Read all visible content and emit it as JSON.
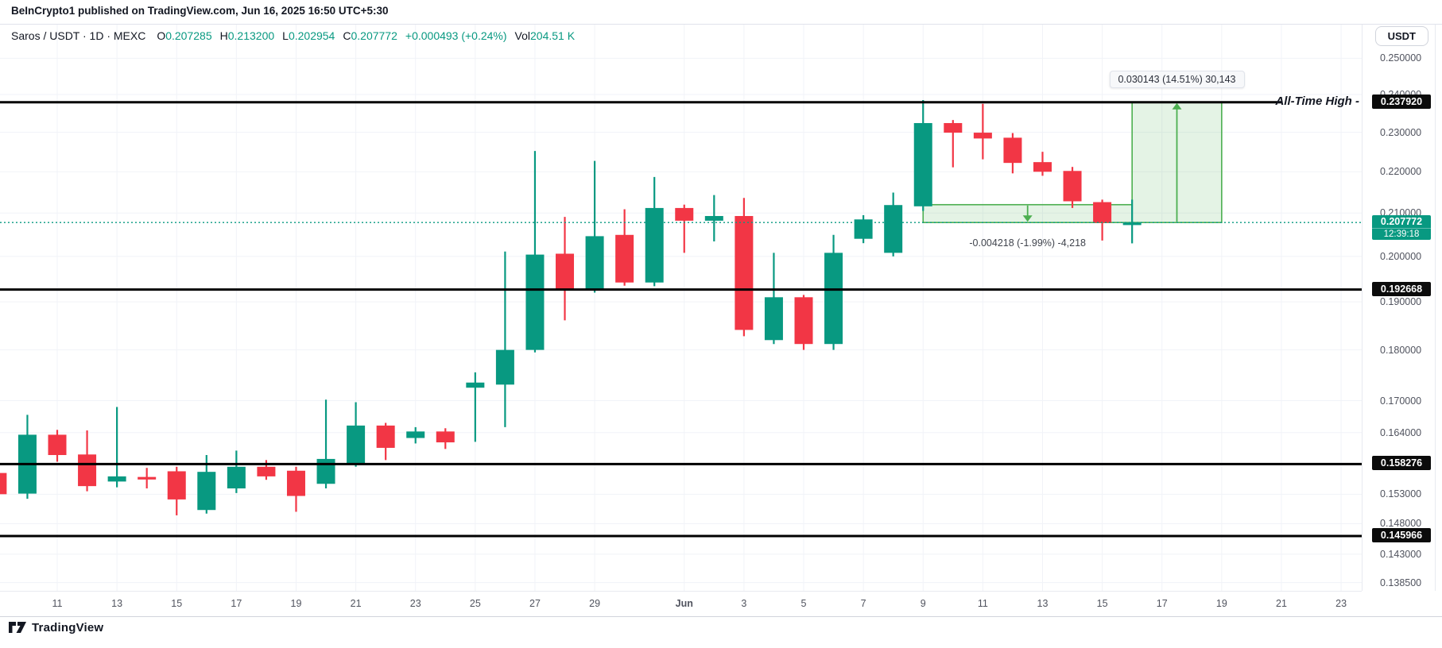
{
  "header": {
    "publish_line": "BeInCrypto1 published on TradingView.com, Jun 16, 2025 16:50 UTC+5:30"
  },
  "toolbar": {
    "symbol": "Saros / USDT · 1D · MEXC",
    "o_label": "O",
    "o_value": "0.207285",
    "h_label": "H",
    "h_value": "0.213200",
    "l_label": "L",
    "l_value": "0.202954",
    "c_label": "C",
    "c_value": "0.207772",
    "change": "+0.000493 (+0.24%)",
    "vol_label": "Vol",
    "vol_value": "204.51 K",
    "currency_button": "USDT"
  },
  "annotations": {
    "ath_text": "All-Time High -",
    "ath_badge": "0.237920",
    "up_measure_label": "0.030143 (14.51%) 30,143",
    "down_measure_label": "-0.004218 (-1.99%) -4,218",
    "current_price_label": "0.207772",
    "countdown": "12:39:18",
    "level_badges": [
      "0.237920",
      "0.192668",
      "0.158276",
      "0.145966"
    ]
  },
  "footer": {
    "brand": "TradingView"
  },
  "chart_data": {
    "type": "candlestick",
    "title": "Saros / USDT 1D (MEXC)",
    "x_unit": "day",
    "first_candle_date": "May 9",
    "last_candle_date": "Jun 16",
    "price_scale_type": "log",
    "colors": {
      "up": "#089981",
      "down": "#F23645",
      "measure": "#4CAF50",
      "level": "#000000",
      "grid": "#F1F3F8"
    },
    "price_axis_ticks": [
      {
        "label": "0.250000",
        "p": 0.25
      },
      {
        "label": "0.240000",
        "p": 0.24
      },
      {
        "label": "0.230000",
        "p": 0.23
      },
      {
        "label": "0.220000",
        "p": 0.22
      },
      {
        "label": "0.210000",
        "p": 0.21
      },
      {
        "label": "0.200000",
        "p": 0.2
      },
      {
        "label": "0.190000",
        "p": 0.19
      },
      {
        "label": "0.180000",
        "p": 0.18
      },
      {
        "label": "0.170000",
        "p": 0.17
      },
      {
        "label": "0.164000",
        "p": 0.164
      },
      {
        "label": "0.153000",
        "p": 0.153
      },
      {
        "label": "0.148000",
        "p": 0.148
      },
      {
        "label": "0.143000",
        "p": 0.143
      },
      {
        "label": "0.138500",
        "p": 0.1385
      }
    ],
    "time_axis_ticks": [
      {
        "label": "11",
        "d": 2
      },
      {
        "label": "13",
        "d": 4
      },
      {
        "label": "15",
        "d": 6
      },
      {
        "label": "17",
        "d": 8
      },
      {
        "label": "19",
        "d": 10
      },
      {
        "label": "21",
        "d": 12
      },
      {
        "label": "23",
        "d": 14
      },
      {
        "label": "25",
        "d": 16
      },
      {
        "label": "27",
        "d": 18
      },
      {
        "label": "29",
        "d": 20
      },
      {
        "label": "Jun",
        "d": 23,
        "month": true
      },
      {
        "label": "3",
        "d": 25
      },
      {
        "label": "5",
        "d": 27
      },
      {
        "label": "7",
        "d": 29
      },
      {
        "label": "9",
        "d": 31
      },
      {
        "label": "11",
        "d": 33
      },
      {
        "label": "13",
        "d": 35
      },
      {
        "label": "15",
        "d": 37
      },
      {
        "label": "17",
        "d": 39
      },
      {
        "label": "19",
        "d": 41
      },
      {
        "label": "21",
        "d": 43
      },
      {
        "label": "23",
        "d": 45
      }
    ],
    "levels": [
      {
        "p": 0.23792,
        "label": "0.237920",
        "name": "all-time-high"
      },
      {
        "p": 0.192668,
        "label": "0.192668",
        "name": "support-1"
      },
      {
        "p": 0.158276,
        "label": "0.158276",
        "name": "support-2"
      },
      {
        "p": 0.145966,
        "label": "0.145966",
        "name": "support-3"
      }
    ],
    "current": {
      "price": 0.207772,
      "countdown": "12:39:18"
    },
    "measures": {
      "up": {
        "d1": 38,
        "d2": 41,
        "p1": 0.207772,
        "p2": 0.237915,
        "label": "0.030143 (14.51%) 30,143"
      },
      "down": {
        "d1": 31,
        "d2": 38,
        "p1": 0.21199,
        "p2": 0.207772,
        "label": "-0.004218 (-1.99%) -4,218"
      }
    },
    "candles": [
      {
        "date": "May 9",
        "o": 0.1567,
        "h": 0.1585,
        "l": 0.152,
        "c": 0.153
      },
      {
        "date": "May 10",
        "o": 0.1531,
        "h": 0.1673,
        "l": 0.1522,
        "c": 0.1636
      },
      {
        "date": "May 11",
        "o": 0.1636,
        "h": 0.1645,
        "l": 0.1587,
        "c": 0.1599
      },
      {
        "date": "May 12",
        "o": 0.16,
        "h": 0.1644,
        "l": 0.1535,
        "c": 0.1544
      },
      {
        "date": "May 13",
        "o": 0.1552,
        "h": 0.1688,
        "l": 0.1542,
        "c": 0.1561
      },
      {
        "date": "May 14",
        "o": 0.156,
        "h": 0.1576,
        "l": 0.154,
        "c": 0.1556
      },
      {
        "date": "May 15",
        "o": 0.157,
        "h": 0.1578,
        "l": 0.1494,
        "c": 0.1521
      },
      {
        "date": "May 16",
        "o": 0.1503,
        "h": 0.1599,
        "l": 0.1497,
        "c": 0.1569
      },
      {
        "date": "May 17",
        "o": 0.154,
        "h": 0.1607,
        "l": 0.1532,
        "c": 0.1578
      },
      {
        "date": "May 18",
        "o": 0.1578,
        "h": 0.159,
        "l": 0.1555,
        "c": 0.1561
      },
      {
        "date": "May 19",
        "o": 0.1571,
        "h": 0.1578,
        "l": 0.15,
        "c": 0.1527
      },
      {
        "date": "May 20",
        "o": 0.1548,
        "h": 0.1702,
        "l": 0.154,
        "c": 0.1592
      },
      {
        "date": "May 21",
        "o": 0.1582,
        "h": 0.1697,
        "l": 0.1578,
        "c": 0.1653
      },
      {
        "date": "May 22",
        "o": 0.1653,
        "h": 0.1658,
        "l": 0.159,
        "c": 0.1612
      },
      {
        "date": "May 23",
        "o": 0.163,
        "h": 0.165,
        "l": 0.162,
        "c": 0.1642
      },
      {
        "date": "May 24",
        "o": 0.1642,
        "h": 0.1648,
        "l": 0.161,
        "c": 0.1622
      },
      {
        "date": "May 25",
        "o": 0.1725,
        "h": 0.1755,
        "l": 0.1623,
        "c": 0.1735
      },
      {
        "date": "May 26",
        "o": 0.1731,
        "h": 0.2011,
        "l": 0.165,
        "c": 0.18
      },
      {
        "date": "May 27",
        "o": 0.18,
        "h": 0.2252,
        "l": 0.1795,
        "c": 0.2004
      },
      {
        "date": "May 28",
        "o": 0.2006,
        "h": 0.2091,
        "l": 0.1861,
        "c": 0.1928
      },
      {
        "date": "May 29",
        "o": 0.1927,
        "h": 0.2227,
        "l": 0.192,
        "c": 0.2046
      },
      {
        "date": "May 30",
        "o": 0.2049,
        "h": 0.2109,
        "l": 0.1935,
        "c": 0.1942
      },
      {
        "date": "May 31",
        "o": 0.1942,
        "h": 0.2187,
        "l": 0.1934,
        "c": 0.2112
      },
      {
        "date": "Jun 1",
        "o": 0.2112,
        "h": 0.212,
        "l": 0.2008,
        "c": 0.2082
      },
      {
        "date": "Jun 2",
        "o": 0.2082,
        "h": 0.2143,
        "l": 0.2034,
        "c": 0.2093
      },
      {
        "date": "Jun 3",
        "o": 0.2093,
        "h": 0.2136,
        "l": 0.1828,
        "c": 0.1841
      },
      {
        "date": "Jun 4",
        "o": 0.182,
        "h": 0.2008,
        "l": 0.1812,
        "c": 0.191
      },
      {
        "date": "Jun 5",
        "o": 0.191,
        "h": 0.1915,
        "l": 0.18,
        "c": 0.1812
      },
      {
        "date": "Jun 6",
        "o": 0.1812,
        "h": 0.2049,
        "l": 0.18,
        "c": 0.2008
      },
      {
        "date": "Jun 7",
        "o": 0.204,
        "h": 0.2095,
        "l": 0.203,
        "c": 0.2085
      },
      {
        "date": "Jun 8",
        "o": 0.2008,
        "h": 0.2149,
        "l": 0.2,
        "c": 0.2119
      },
      {
        "date": "Jun 9",
        "o": 0.2116,
        "h": 0.2385,
        "l": 0.2105,
        "c": 0.2324
      },
      {
        "date": "Jun 10",
        "o": 0.2324,
        "h": 0.2332,
        "l": 0.2211,
        "c": 0.2299
      },
      {
        "date": "Jun 11",
        "o": 0.2299,
        "h": 0.2375,
        "l": 0.2231,
        "c": 0.2284
      },
      {
        "date": "Jun 12",
        "o": 0.2286,
        "h": 0.2298,
        "l": 0.2196,
        "c": 0.2222
      },
      {
        "date": "Jun 13",
        "o": 0.2224,
        "h": 0.225,
        "l": 0.219,
        "c": 0.22
      },
      {
        "date": "Jun 14",
        "o": 0.2202,
        "h": 0.2212,
        "l": 0.2112,
        "c": 0.2128
      },
      {
        "date": "Jun 15",
        "o": 0.2126,
        "h": 0.2132,
        "l": 0.2036,
        "c": 0.2077
      },
      {
        "date": "Jun 16",
        "o": 0.207285,
        "h": 0.2132,
        "l": 0.202954,
        "c": 0.207772
      }
    ]
  }
}
